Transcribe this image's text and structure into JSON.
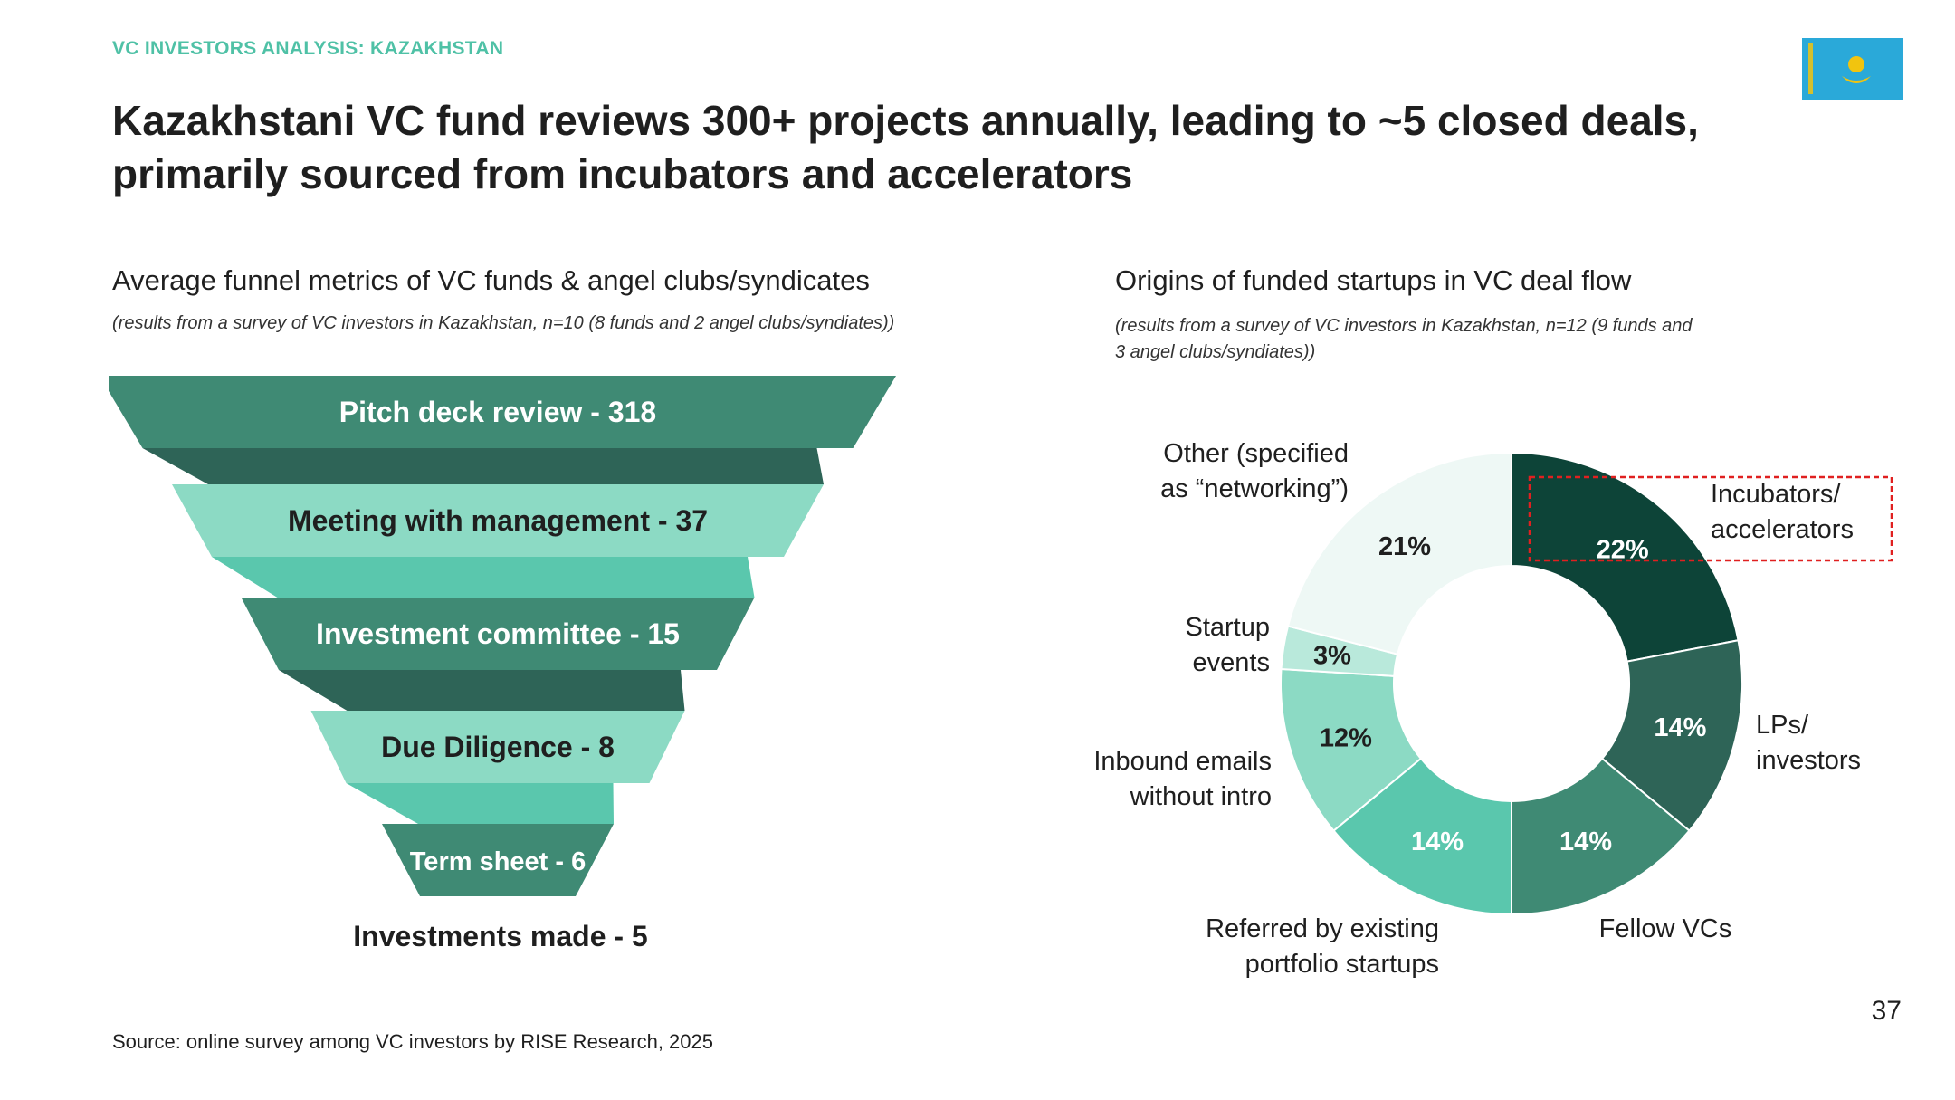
{
  "kicker": "VC INVESTORS ANALYSIS: KAZAKHSTAN",
  "headline": "Kazakhstani VC fund reviews 300+ projects annually, leading to ~5 closed deals, primarily sourced from incubators and accelerators",
  "flag_icon": "kazakhstan-flag-icon",
  "colors": {
    "accent": "#4fc1a6",
    "funnel_dark": "#3f8a74",
    "funnel_light": "#8cdac4",
    "connector_dark": "#2e6457",
    "connector_light": "#5ac7ad",
    "flag_blue": "#2aa9d9",
    "flag_gold": "#f1c40f",
    "highlight_box": "#e02020"
  },
  "left_panel": {
    "title": "Average funnel metrics of VC funds & angel clubs/syndicates",
    "note": "(results from a survey of VC investors in Kazakhstan, n=10 (8 funds and 2 angel clubs/syndiates))"
  },
  "right_panel": {
    "title": "Origins of funded startups in VC deal flow",
    "note_line1": "(results from a survey of VC investors in Kazakhstan, n=12 (9 funds and",
    "note_line2": "3 angel clubs/syndiates))"
  },
  "chart_data": [
    {
      "type": "funnel",
      "title": "Average funnel metrics of VC funds & angel clubs/syndicates",
      "stages": [
        {
          "label": "Pitch deck review - 318",
          "name": "Pitch deck review",
          "value": 318
        },
        {
          "label": "Meeting with management - 37",
          "name": "Meeting with management",
          "value": 37
        },
        {
          "label": "Investment committee - 15",
          "name": "Investment committee",
          "value": 15
        },
        {
          "label": "Due Diligence - 8",
          "name": "Due Diligence",
          "value": 8
        },
        {
          "label": "Term sheet - 6",
          "name": "Term sheet",
          "value": 6
        }
      ],
      "final": {
        "label": "Investments made - 5",
        "name": "Investments made",
        "value": 5
      }
    },
    {
      "type": "pie",
      "title": "Origins of funded startups in VC deal flow",
      "slices": [
        {
          "name": "Incubators/ accelerators",
          "lines": [
            "Incubators/",
            "accelerators"
          ],
          "value": 22,
          "label": "22%",
          "color": "#0d4438",
          "text_color": "#ffffff",
          "highlighted": true
        },
        {
          "name": "LPs/ investors",
          "lines": [
            "LPs/",
            "investors"
          ],
          "value": 14,
          "label": "14%",
          "color": "#2e6457",
          "text_color": "#ffffff"
        },
        {
          "name": "Fellow VCs",
          "lines": [
            "Fellow VCs"
          ],
          "value": 14,
          "label": "14%",
          "color": "#3f8a74",
          "text_color": "#ffffff"
        },
        {
          "name": "Referred by existing portfolio startups",
          "lines": [
            "Referred by existing",
            "portfolio startups"
          ],
          "value": 14,
          "label": "14%",
          "color": "#5ac7ad",
          "text_color": "#ffffff"
        },
        {
          "name": "Inbound emails without intro",
          "lines": [
            "Inbound emails",
            "without intro"
          ],
          "value": 12,
          "label": "12%",
          "color": "#8cdac4",
          "text_color": "#1f1f1f"
        },
        {
          "name": "Startup events",
          "lines": [
            "Startup",
            "events"
          ],
          "value": 3,
          "label": "3%",
          "color": "#b9e9db",
          "text_color": "#1f1f1f"
        },
        {
          "name": "Other (specified as “networking”)",
          "lines": [
            "Other (specified",
            "as “networking”)"
          ],
          "value": 21,
          "label": "21%",
          "color": "#eef8f5",
          "text_color": "#1f1f1f"
        }
      ]
    }
  ],
  "page_number": "37",
  "source": "Source: online survey among VC investors by RISE Research, 2025"
}
